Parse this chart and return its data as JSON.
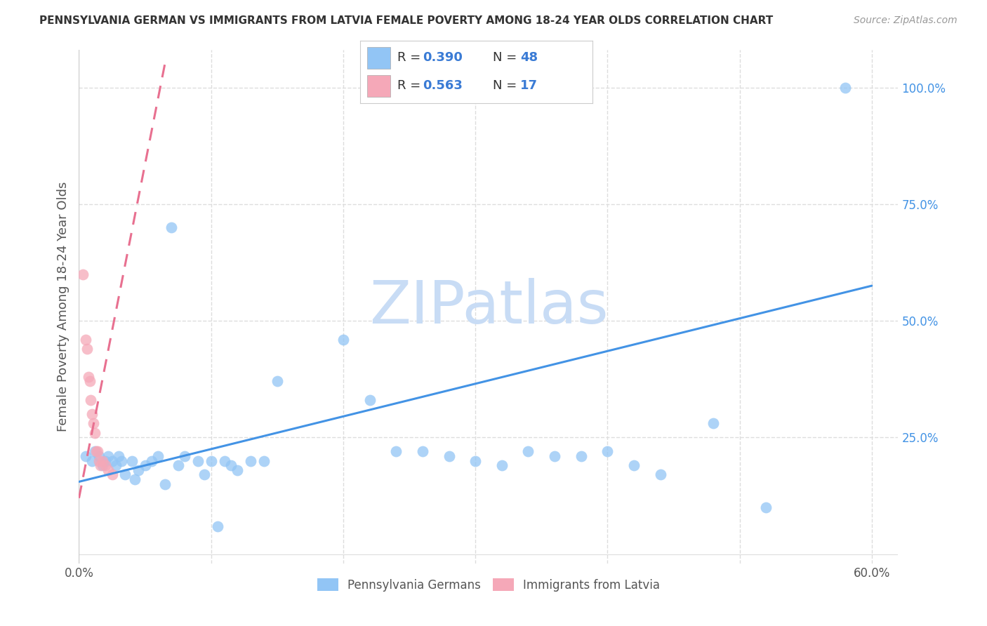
{
  "title": "PENNSYLVANIA GERMAN VS IMMIGRANTS FROM LATVIA FEMALE POVERTY AMONG 18-24 YEAR OLDS CORRELATION CHART",
  "source": "Source: ZipAtlas.com",
  "ylabel": "Female Poverty Among 18-24 Year Olds",
  "xlim": [
    0.0,
    0.62
  ],
  "ylim": [
    -0.02,
    1.08
  ],
  "xticks": [
    0.0,
    0.1,
    0.2,
    0.3,
    0.4,
    0.5,
    0.6
  ],
  "xticklabels": [
    "0.0%",
    "",
    "",
    "",
    "",
    "",
    "60.0%"
  ],
  "yticks_right": [
    0.0,
    0.25,
    0.5,
    0.75,
    1.0
  ],
  "ytickslabels_right": [
    "",
    "25.0%",
    "50.0%",
    "75.0%",
    "100.0%"
  ],
  "legend_blue_r": "R = 0.390",
  "legend_blue_n": "N = 48",
  "legend_pink_r": "R = 0.563",
  "legend_pink_n": "N = 17",
  "blue_color": "#92C5F5",
  "pink_color": "#F5A8B8",
  "blue_line_color": "#4393E5",
  "pink_line_color": "#E87090",
  "legend_text_color": "#3A7BD5",
  "legend_label_color": "#333333",
  "watermark": "ZIPatlas",
  "watermark_color": "#C8DCF5",
  "blue_scatter_x": [
    0.005,
    0.01,
    0.012,
    0.015,
    0.018,
    0.02,
    0.022,
    0.025,
    0.028,
    0.03,
    0.032,
    0.035,
    0.04,
    0.042,
    0.045,
    0.05,
    0.055,
    0.06,
    0.065,
    0.07,
    0.075,
    0.08,
    0.09,
    0.095,
    0.1,
    0.105,
    0.11,
    0.115,
    0.12,
    0.13,
    0.14,
    0.15,
    0.2,
    0.22,
    0.24,
    0.26,
    0.28,
    0.3,
    0.32,
    0.34,
    0.36,
    0.38,
    0.4,
    0.42,
    0.44,
    0.48,
    0.52,
    0.58
  ],
  "blue_scatter_y": [
    0.21,
    0.2,
    0.22,
    0.21,
    0.19,
    0.2,
    0.21,
    0.2,
    0.19,
    0.21,
    0.2,
    0.17,
    0.2,
    0.16,
    0.18,
    0.19,
    0.2,
    0.21,
    0.15,
    0.7,
    0.19,
    0.21,
    0.2,
    0.17,
    0.2,
    0.06,
    0.2,
    0.19,
    0.18,
    0.2,
    0.2,
    0.37,
    0.46,
    0.33,
    0.22,
    0.22,
    0.21,
    0.2,
    0.19,
    0.22,
    0.21,
    0.21,
    0.22,
    0.19,
    0.17,
    0.28,
    0.1,
    1.0
  ],
  "pink_scatter_x": [
    0.003,
    0.005,
    0.006,
    0.007,
    0.008,
    0.009,
    0.01,
    0.011,
    0.012,
    0.013,
    0.014,
    0.015,
    0.016,
    0.018,
    0.02,
    0.022,
    0.025
  ],
  "pink_scatter_y": [
    0.6,
    0.46,
    0.44,
    0.38,
    0.37,
    0.33,
    0.3,
    0.28,
    0.26,
    0.22,
    0.22,
    0.2,
    0.19,
    0.2,
    0.19,
    0.18,
    0.17
  ],
  "blue_trend_x": [
    0.0,
    0.6
  ],
  "blue_trend_y": [
    0.155,
    0.575
  ],
  "pink_trend_x": [
    0.0,
    0.065
  ],
  "pink_trend_y": [
    0.12,
    1.05
  ],
  "background_color": "#FFFFFF",
  "grid_color": "#DDDDDD"
}
